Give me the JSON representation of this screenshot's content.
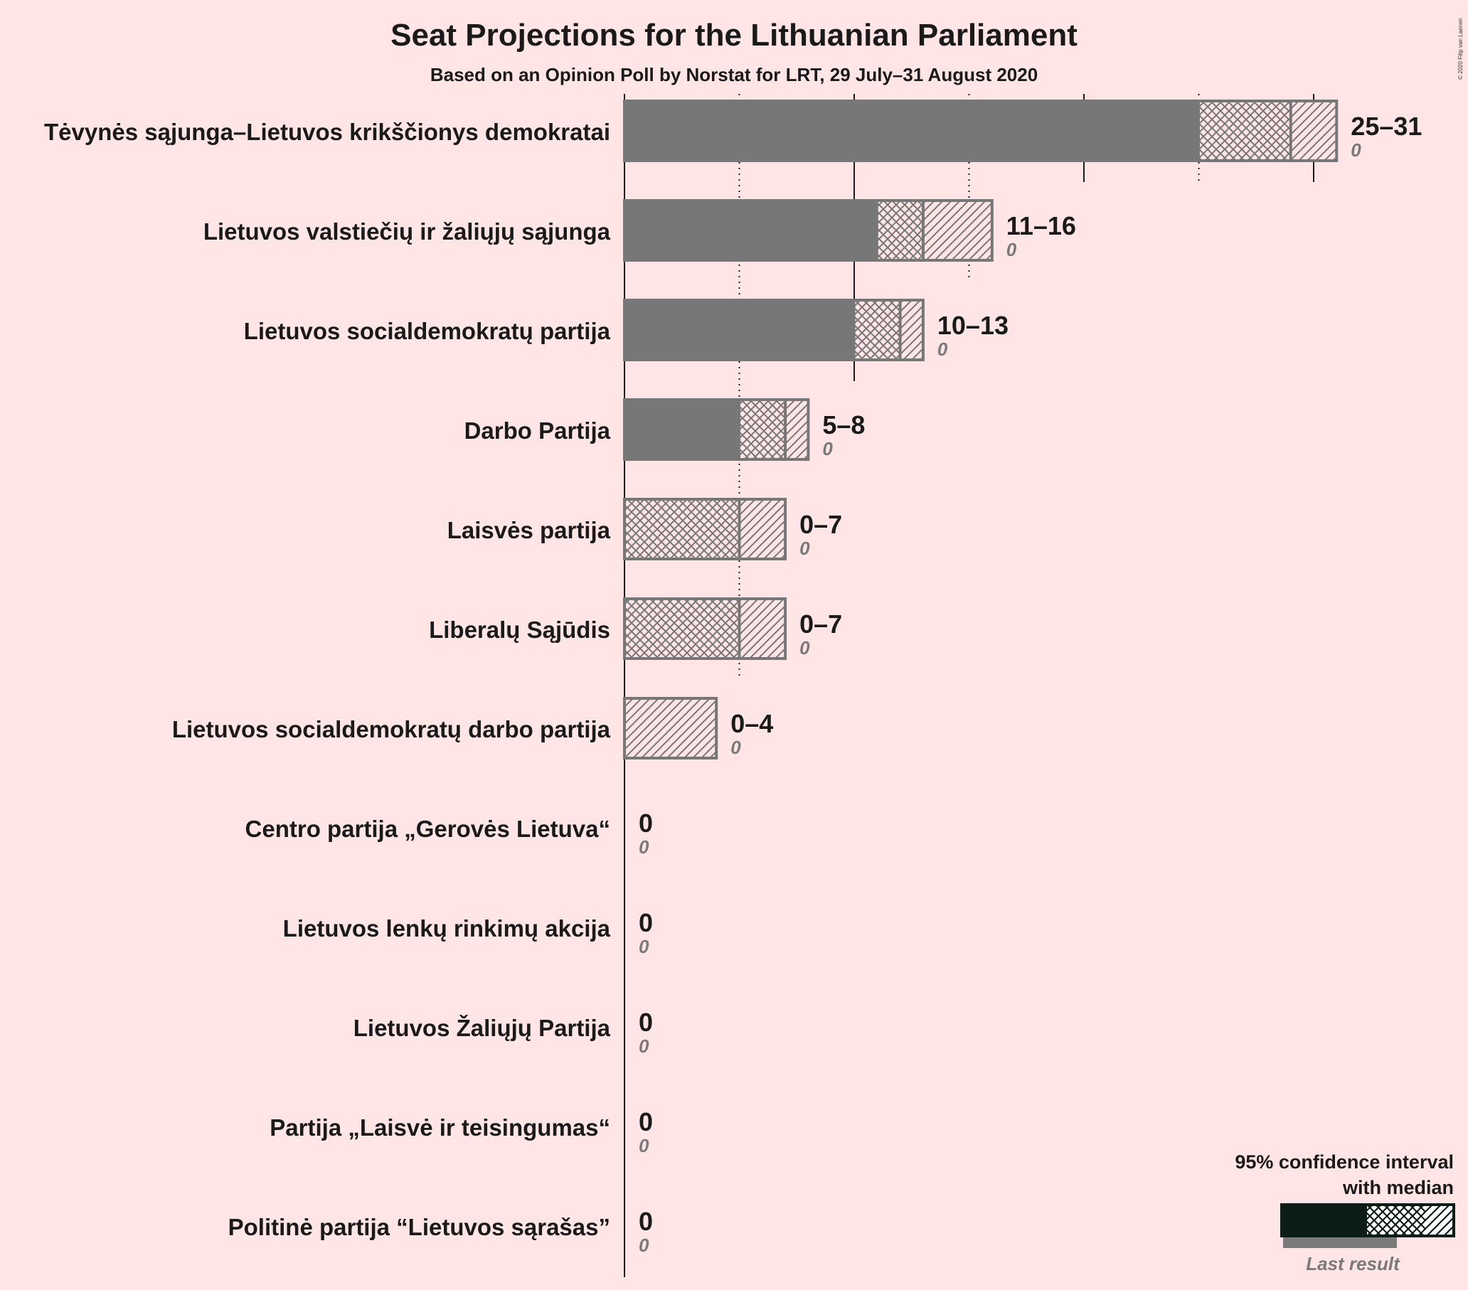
{
  "chart_data": {
    "type": "bar",
    "title": "Seat Projections for the Lithuanian Parliament",
    "subtitle": "Based on an Opinion Poll by Norstat for LRT, 29 July–31 August 2020",
    "copyright": "© 2020 Filip van Laenen",
    "xlim": [
      0,
      32
    ],
    "gridlines": [
      5,
      10,
      15,
      20,
      25,
      30
    ],
    "legend": {
      "title_line1": "95% confidence interval",
      "title_line2": "with median",
      "last_result": "Last result",
      "placement": "bottom-right"
    },
    "colors": {
      "background": "#ffe5e5",
      "bar": "#777777",
      "legend_bar": "#0b1d16"
    },
    "parties": [
      {
        "name": "Tėvynės sąjunga–Lietuvos krikščionys demokratai",
        "low": 25,
        "median": 29,
        "high": 31,
        "range_label": "25–31",
        "last": 0,
        "last_label": "0"
      },
      {
        "name": "Lietuvos valstiečių ir žaliųjų sąjunga",
        "low": 11,
        "median": 13,
        "high": 16,
        "range_label": "11–16",
        "last": 0,
        "last_label": "0"
      },
      {
        "name": "Lietuvos socialdemokratų partija",
        "low": 10,
        "median": 12,
        "high": 13,
        "range_label": "10–13",
        "last": 0,
        "last_label": "0"
      },
      {
        "name": "Darbo Partija",
        "low": 5,
        "median": 7,
        "high": 8,
        "range_label": "5–8",
        "last": 0,
        "last_label": "0"
      },
      {
        "name": "Laisvės partija",
        "low": 0,
        "median": 5,
        "high": 7,
        "range_label": "0–7",
        "last": 0,
        "last_label": "0"
      },
      {
        "name": "Liberalų Sąjūdis",
        "low": 0,
        "median": 5,
        "high": 7,
        "range_label": "0–7",
        "last": 0,
        "last_label": "0"
      },
      {
        "name": "Lietuvos socialdemokratų darbo partija",
        "low": 0,
        "median": 0,
        "high": 4,
        "range_label": "0–4",
        "last": 0,
        "last_label": "0"
      },
      {
        "name": "Centro partija „Gerovės Lietuva“",
        "low": 0,
        "median": 0,
        "high": 0,
        "range_label": "0",
        "last": 0,
        "last_label": "0"
      },
      {
        "name": "Lietuvos lenkų rinkimų akcija",
        "low": 0,
        "median": 0,
        "high": 0,
        "range_label": "0",
        "last": 0,
        "last_label": "0"
      },
      {
        "name": "Lietuvos Žaliųjų Partija",
        "low": 0,
        "median": 0,
        "high": 0,
        "range_label": "0",
        "last": 0,
        "last_label": "0"
      },
      {
        "name": "Partija „Laisvė ir teisingumas“",
        "low": 0,
        "median": 0,
        "high": 0,
        "range_label": "0",
        "last": 0,
        "last_label": "0"
      },
      {
        "name": "Politinė partija “Lietuvos sąrašas”",
        "low": 0,
        "median": 0,
        "high": 0,
        "range_label": "0",
        "last": 0,
        "last_label": "0"
      }
    ]
  }
}
